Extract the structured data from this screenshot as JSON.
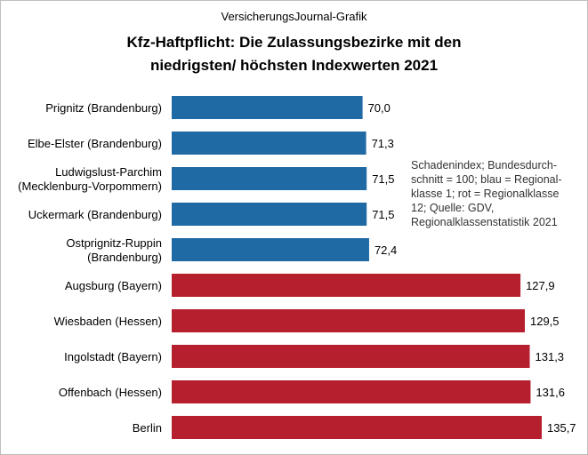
{
  "source_label": "VersicherungsJournal-Grafik",
  "title": "Kfz-Haftpflicht: Die Zulassungsbezirke  mit den\nniedrigsten/ höchsten  Indexwerten 2021",
  "note": "Schadenindex;  Bundesdurch-\nschnitt = 100; blau = Regional-\nklasse 1; rot = Regionalklasse\n12; Quelle: GDV,\nRegionalklassenstatistik 2021",
  "colors": {
    "low": "#1f6aa5",
    "high": "#b51f2e"
  },
  "chart_data": {
    "type": "bar",
    "orientation": "horizontal",
    "categories": [
      "Prignitz (Brandenburg)",
      "Elbe-Elster (Brandenburg)",
      "Ludwigslust-Parchim\n(Mecklenburg-Vorpommern)",
      "Uckermark (Brandenburg)",
      "Ostprignitz-Ruppin\n(Brandenburg)",
      "Augsburg (Bayern)",
      "Wiesbaden (Hessen)",
      "Ingolstadt (Bayern)",
      "Offenbach (Hessen)",
      "Berlin"
    ],
    "values": [
      70.0,
      71.3,
      71.5,
      71.5,
      72.4,
      127.9,
      129.5,
      131.3,
      131.6,
      135.7
    ],
    "value_labels": [
      "70,0",
      "71,3",
      "71,5",
      "71,5",
      "72,4",
      "127,9",
      "129,5",
      "131,3",
      "131,6",
      "135,7"
    ],
    "groups": [
      "low",
      "low",
      "low",
      "low",
      "low",
      "high",
      "high",
      "high",
      "high",
      "high"
    ],
    "xlim": [
      0,
      135.7
    ],
    "axis_visible": false,
    "grid": false,
    "legend": "none"
  }
}
